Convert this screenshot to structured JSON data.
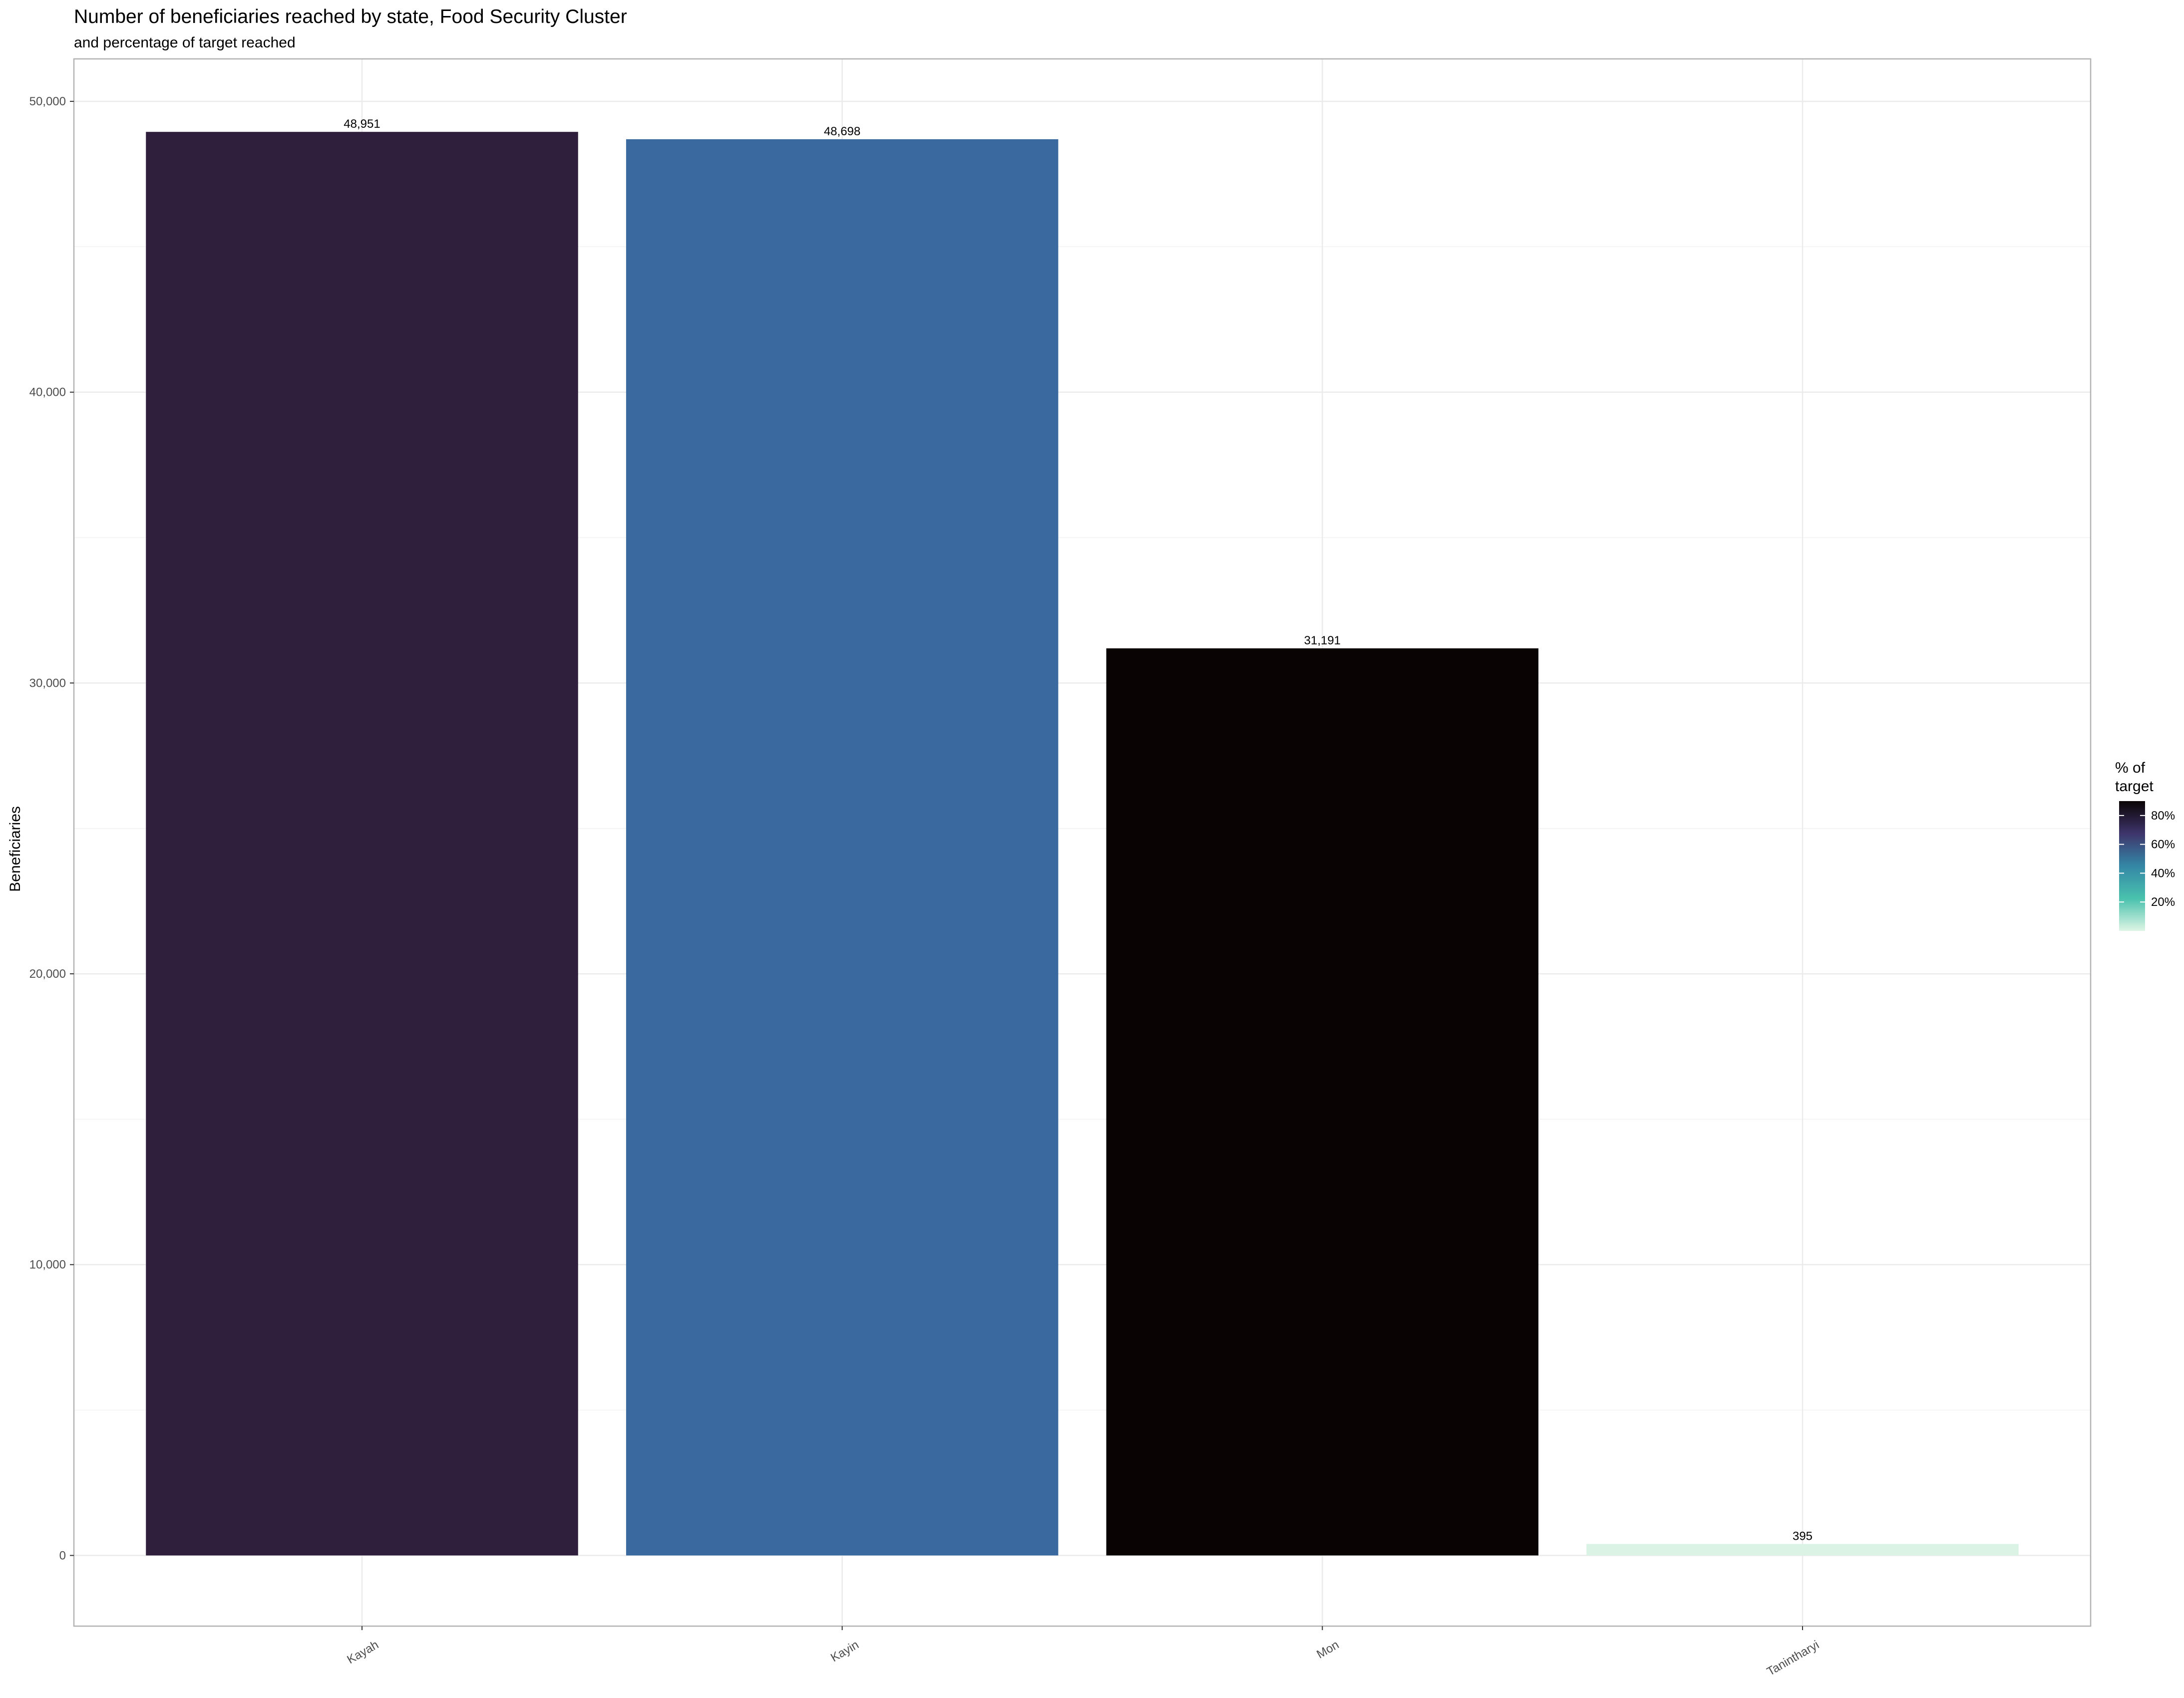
{
  "chart_data": {
    "type": "bar",
    "title": "Number of beneficiaries reached by state, Food Security Cluster",
    "subtitle": "and percentage of target reached",
    "xlabel": "",
    "ylabel": "Beneficiaries",
    "categories": [
      "Kayah",
      "Kayin",
      "Mon",
      "Tanintharyi"
    ],
    "values": [
      48951,
      48698,
      31191,
      395
    ],
    "value_labels": [
      "48,951",
      "48,698",
      "31,191",
      "395"
    ],
    "bar_colors": [
      "#2F1F3C",
      "#3A69A0",
      "#0A0303",
      "#DAF3E5"
    ],
    "ylim": [
      -2430,
      51460
    ],
    "yticks": [
      0,
      10000,
      20000,
      30000,
      40000,
      50000
    ],
    "ytick_labels": [
      "0",
      "10,000",
      "20,000",
      "30,000",
      "40,000",
      "50,000"
    ],
    "grid": true,
    "legend": {
      "title_lines": [
        "% of",
        "target"
      ],
      "position": "right",
      "range": [
        0,
        90
      ],
      "ticks": [
        20,
        40,
        60,
        80
      ],
      "tick_labels": [
        "20%",
        "40%",
        "60%",
        "80%"
      ],
      "gradient": [
        "#DEF5E5",
        "#49C1AD",
        "#3487A6",
        "#3E356B",
        "#0B0405"
      ]
    }
  }
}
